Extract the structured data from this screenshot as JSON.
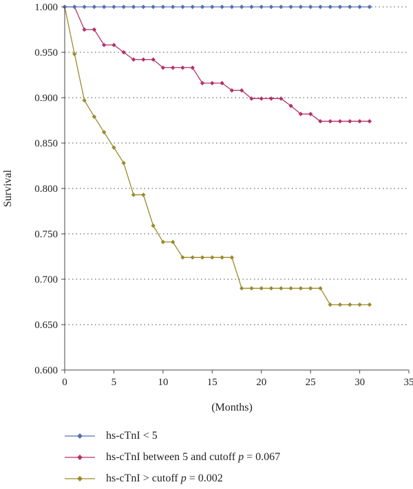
{
  "chart_data": {
    "type": "line",
    "title": "",
    "xlabel": "(Months)",
    "ylabel": "Survival",
    "xlim": [
      0,
      35
    ],
    "ylim": [
      0.6,
      1.0
    ],
    "x_ticks": [
      "0",
      "5",
      "10",
      "15",
      "20",
      "25",
      "30",
      "35"
    ],
    "y_ticks": [
      "0.600",
      "0.650",
      "0.700",
      "0.750",
      "0.800",
      "0.850",
      "0.900",
      "0.950",
      "1.000"
    ],
    "grid": "horizontal-dotted",
    "legend_position": "bottom",
    "series": [
      {
        "name": "hs-cTnI < 5",
        "color": "#5470b0",
        "x": [
          0,
          1,
          2,
          3,
          4,
          5,
          6,
          7,
          8,
          9,
          10,
          11,
          12,
          13,
          14,
          15,
          16,
          17,
          18,
          19,
          20,
          21,
          22,
          23,
          24,
          25,
          26,
          27,
          28,
          29,
          30,
          31
        ],
        "values": [
          1.0,
          1.0,
          1.0,
          1.0,
          1.0,
          1.0,
          1.0,
          1.0,
          1.0,
          1.0,
          1.0,
          1.0,
          1.0,
          1.0,
          1.0,
          1.0,
          1.0,
          1.0,
          1.0,
          1.0,
          1.0,
          1.0,
          1.0,
          1.0,
          1.0,
          1.0,
          1.0,
          1.0,
          1.0,
          1.0,
          1.0,
          1.0
        ]
      },
      {
        "name": "hs-cTnI between 5 and cutoff",
        "p_label": "p",
        "p_value": " = 0.067",
        "color": "#b5316a",
        "x": [
          0,
          1,
          2,
          3,
          4,
          5,
          6,
          7,
          8,
          9,
          10,
          11,
          12,
          13,
          14,
          15,
          16,
          17,
          18,
          19,
          20,
          21,
          22,
          23,
          24,
          25,
          26,
          27,
          28,
          29,
          30,
          31
        ],
        "values": [
          1.0,
          1.0,
          0.975,
          0.975,
          0.958,
          0.958,
          0.95,
          0.942,
          0.942,
          0.942,
          0.933,
          0.933,
          0.933,
          0.933,
          0.916,
          0.916,
          0.916,
          0.908,
          0.908,
          0.899,
          0.899,
          0.899,
          0.899,
          0.891,
          0.882,
          0.882,
          0.874,
          0.874,
          0.874,
          0.874,
          0.874,
          0.874
        ]
      },
      {
        "name": "hs-cTnI > cutoff",
        "p_label": "p",
        "p_value": " = 0.002",
        "color": "#9a8a2a",
        "x": [
          0,
          1,
          2,
          3,
          4,
          5,
          6,
          7,
          8,
          9,
          10,
          11,
          12,
          13,
          14,
          15,
          16,
          17,
          18,
          19,
          20,
          21,
          22,
          23,
          24,
          25,
          26,
          27,
          28,
          29,
          30,
          31
        ],
        "values": [
          1.0,
          0.948,
          0.897,
          0.879,
          0.862,
          0.845,
          0.828,
          0.793,
          0.793,
          0.759,
          0.741,
          0.741,
          0.724,
          0.724,
          0.724,
          0.724,
          0.724,
          0.724,
          0.69,
          0.69,
          0.69,
          0.69,
          0.69,
          0.69,
          0.69,
          0.69,
          0.69,
          0.672,
          0.672,
          0.672,
          0.672,
          0.672
        ]
      }
    ]
  }
}
